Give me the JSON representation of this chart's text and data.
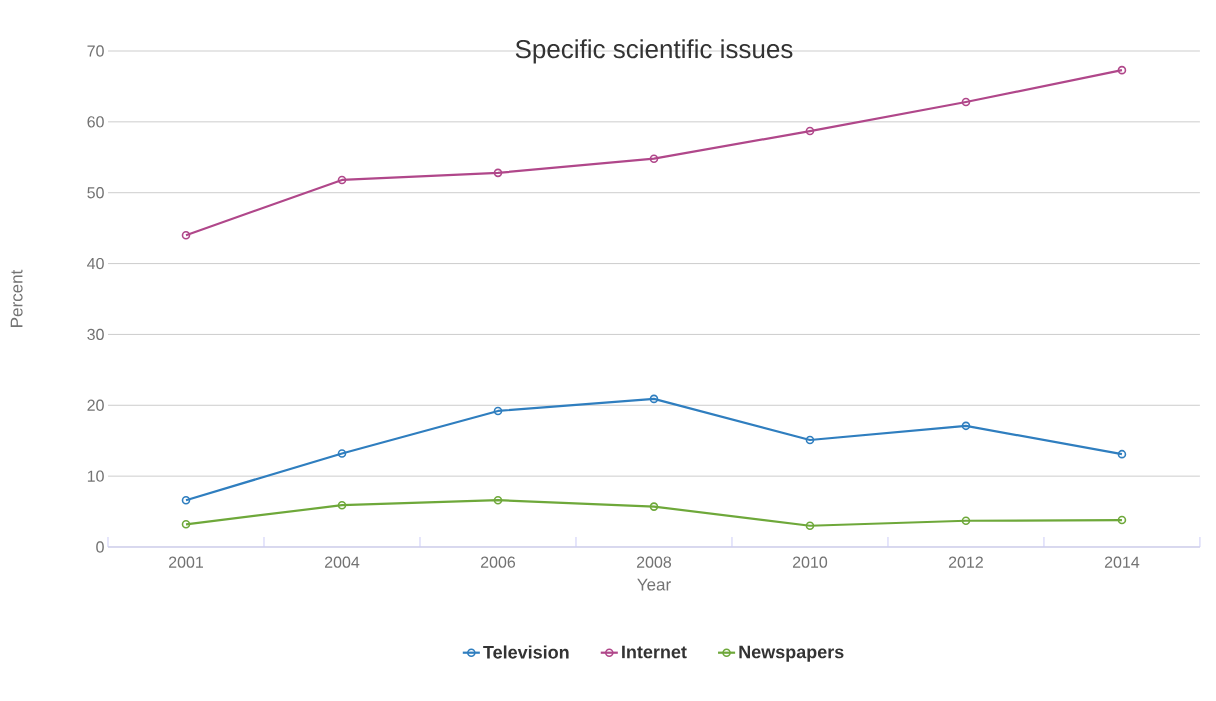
{
  "chart_data": {
    "type": "line",
    "title": "Specific scientific issues",
    "xlabel": "Year",
    "ylabel": "Percent",
    "categories": [
      "2001",
      "2004",
      "2006",
      "2008",
      "2010",
      "2012",
      "2014"
    ],
    "series": [
      {
        "name": "Television",
        "color": "#2f7ebf",
        "values": [
          6.6,
          13.2,
          19.2,
          20.9,
          15.1,
          17.1,
          13.1
        ]
      },
      {
        "name": "Internet",
        "color": "#b0478a",
        "values": [
          44,
          51.8,
          52.8,
          54.8,
          58.7,
          62.8,
          67.3
        ]
      },
      {
        "name": "Newspapers",
        "color": "#6ea83a",
        "values": [
          3.2,
          5.9,
          6.6,
          5.7,
          3.0,
          3.7,
          3.8
        ]
      }
    ],
    "ylim": [
      0,
      70
    ],
    "yticks": [
      0,
      10,
      20,
      30,
      40,
      50,
      60,
      70
    ],
    "grid": "y",
    "legend": "bottom",
    "marker": "circle",
    "line_style": "solid"
  }
}
